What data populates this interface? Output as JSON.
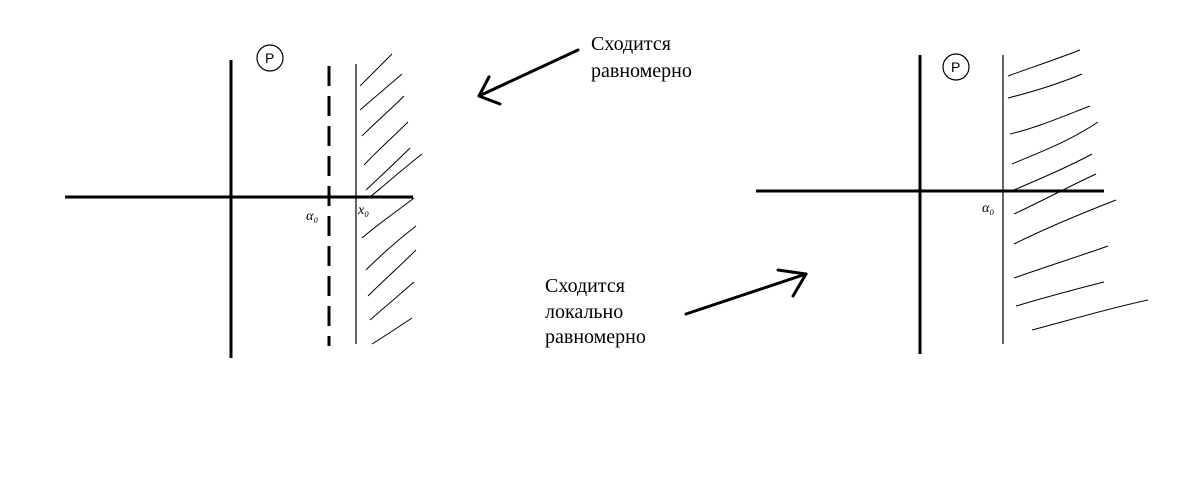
{
  "left_diagram": {
    "plane_label": "P",
    "point_alpha_label": "α₀",
    "point_x_label": "x₀"
  },
  "right_diagram": {
    "plane_label": "P",
    "point_alpha_label": "α₀"
  },
  "annotations": {
    "uniform": {
      "line1": "Сходится",
      "line2": "равномерно"
    },
    "locally_uniform": {
      "line1": "Сходится",
      "line2": "локально",
      "line3": "равномерно"
    }
  },
  "colors": {
    "ink": "#000000",
    "background": "#ffffff"
  }
}
